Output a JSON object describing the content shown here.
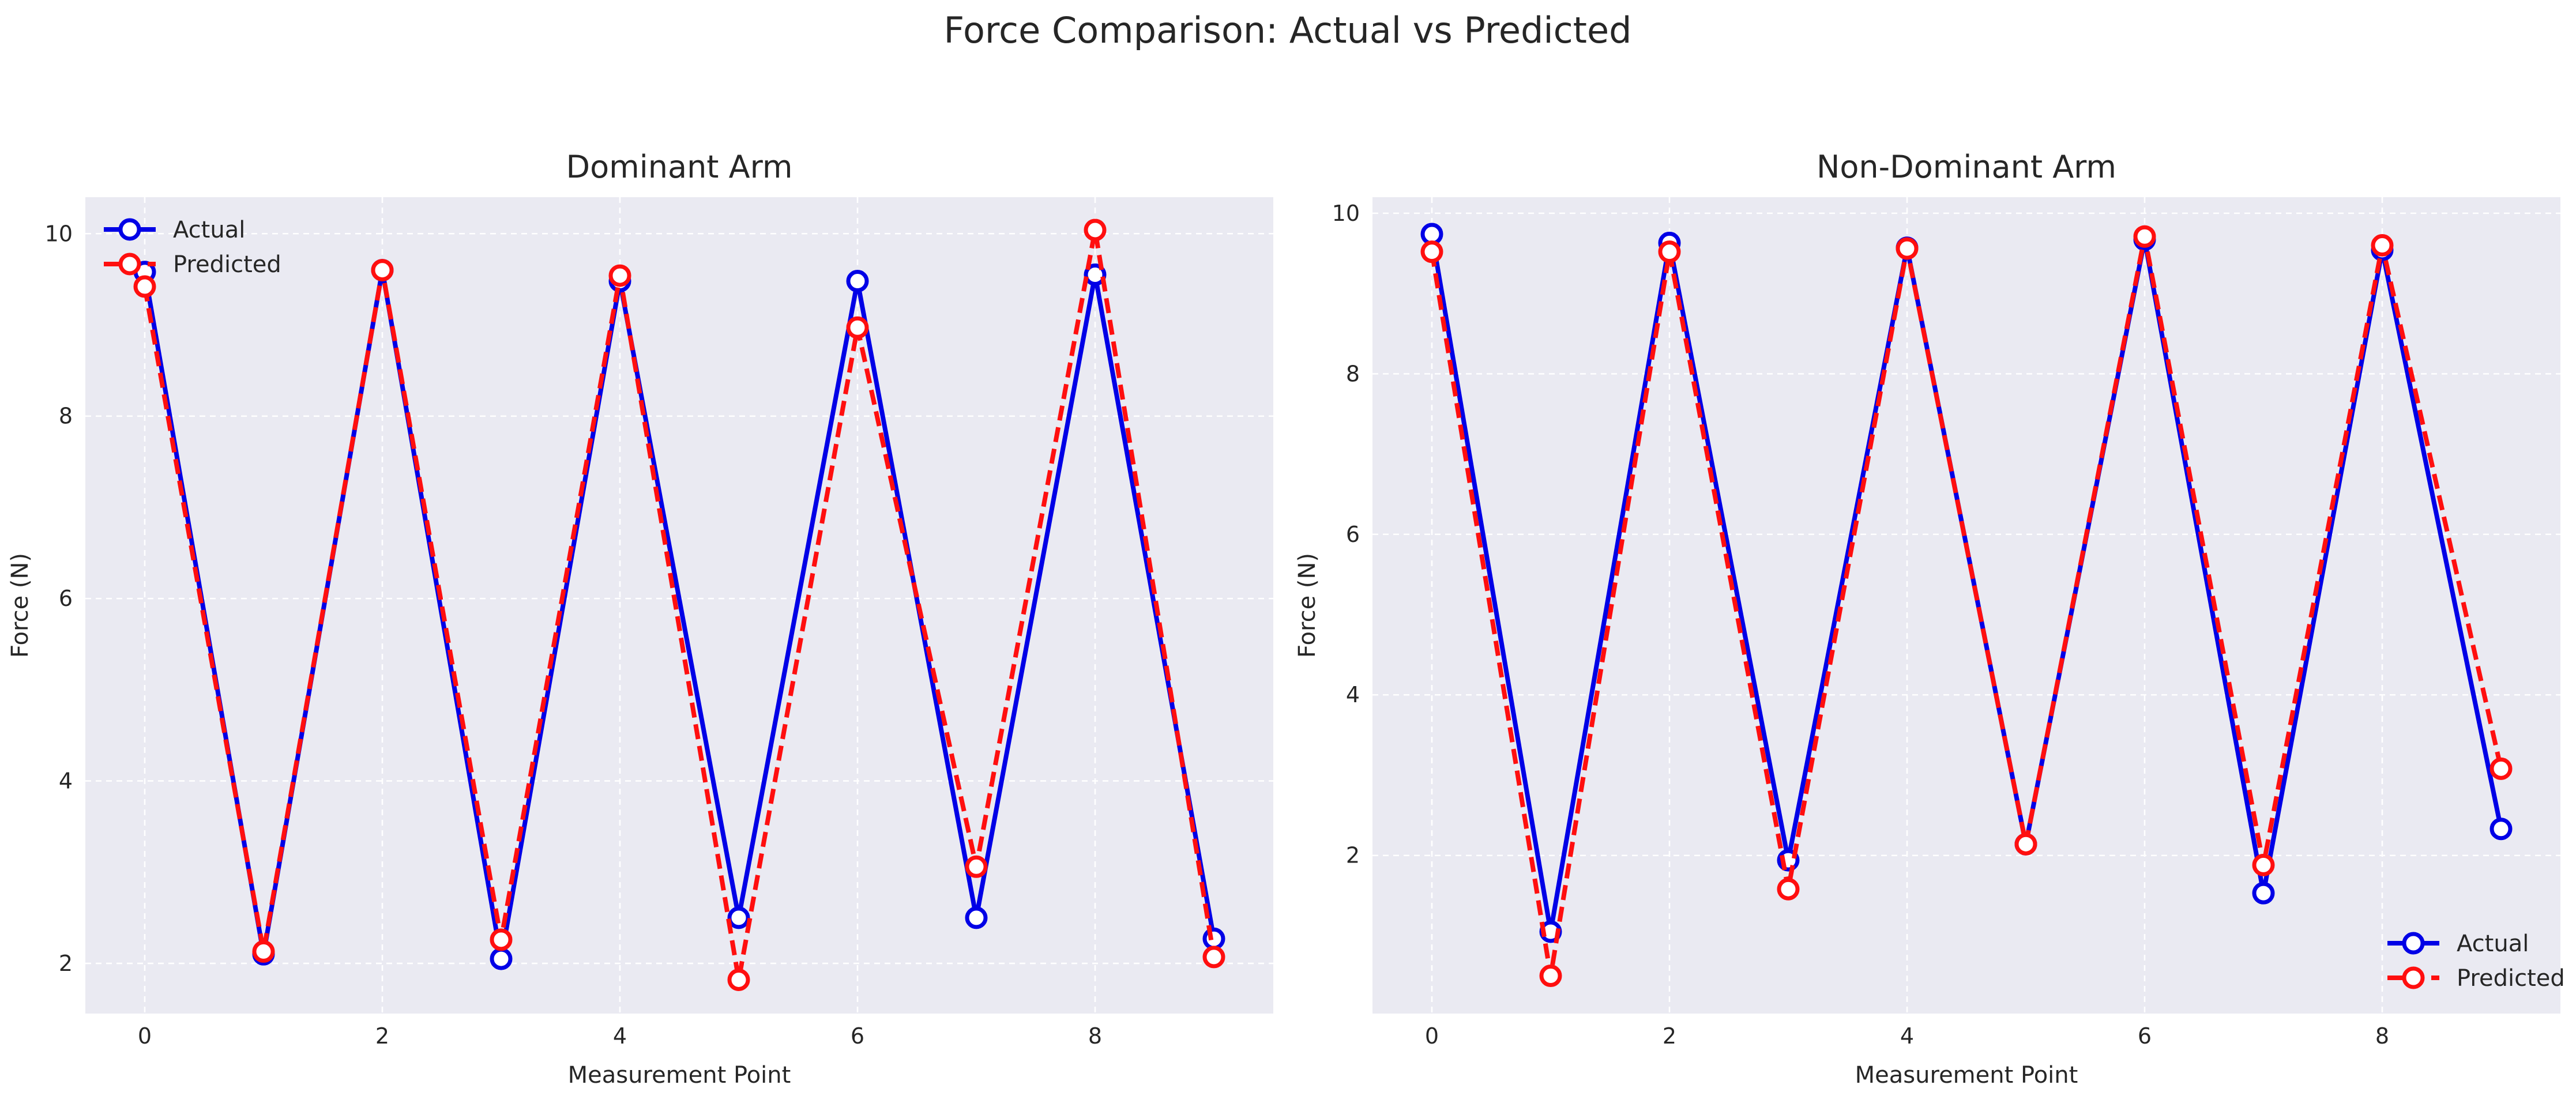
{
  "figure": {
    "title": "Force Comparison: Actual vs Predicted"
  },
  "chart_data": [
    {
      "type": "line",
      "title": "Dominant Arm",
      "xlabel": "Measurement Point",
      "ylabel": "Force (N)",
      "xlim": [
        -0.5,
        9.5
      ],
      "ylim": [
        1.45,
        10.4
      ],
      "xticks": [
        0,
        2,
        4,
        6,
        8
      ],
      "yticks": [
        2,
        4,
        6,
        8,
        10
      ],
      "grid": true,
      "legend": "top-left",
      "x": [
        0,
        1,
        2,
        3,
        4,
        5,
        6,
        7,
        8,
        9
      ],
      "series": [
        {
          "name": "Actual",
          "color": "#0000e6",
          "style": "solid",
          "values": [
            9.58,
            2.1,
            9.6,
            2.05,
            9.48,
            2.5,
            9.48,
            2.5,
            9.55,
            2.27
          ]
        },
        {
          "name": "Predicted",
          "color": "#ff0f0f",
          "style": "dashed",
          "values": [
            9.42,
            2.13,
            9.6,
            2.26,
            9.54,
            1.82,
            8.97,
            3.06,
            10.04,
            2.07
          ]
        }
      ]
    },
    {
      "type": "line",
      "title": "Non-Dominant Arm",
      "xlabel": "Measurement Point",
      "ylabel": "Force (N)",
      "xlim": [
        -0.5,
        9.5
      ],
      "ylim": [
        0.03,
        10.2
      ],
      "xticks": [
        0,
        2,
        4,
        6,
        8
      ],
      "yticks": [
        2,
        4,
        6,
        8,
        10
      ],
      "grid": true,
      "legend": "bottom-right",
      "x": [
        0,
        1,
        2,
        3,
        4,
        5,
        6,
        7,
        8,
        9
      ],
      "series": [
        {
          "name": "Actual",
          "color": "#0000e6",
          "style": "solid",
          "values": [
            9.74,
            1.05,
            9.63,
            1.94,
            9.57,
            2.14,
            9.67,
            1.53,
            9.54,
            2.33
          ]
        },
        {
          "name": "Predicted",
          "color": "#ff0f0f",
          "style": "dashed",
          "values": [
            9.52,
            0.5,
            9.52,
            1.58,
            9.56,
            2.14,
            9.71,
            1.88,
            9.6,
            3.08
          ]
        }
      ]
    }
  ]
}
